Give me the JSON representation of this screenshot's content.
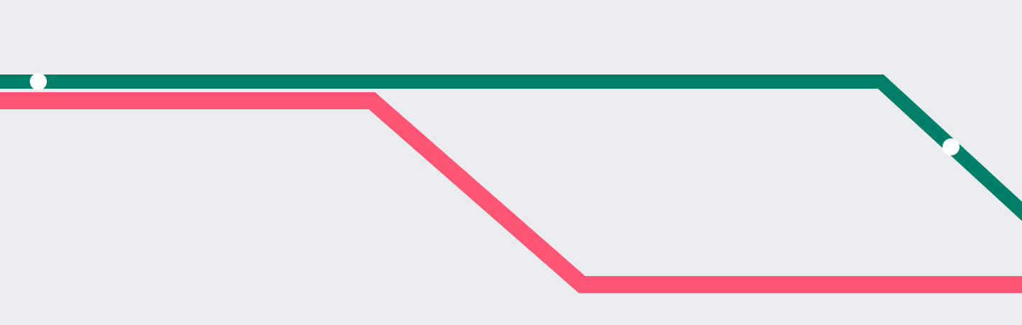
{
  "colors": {
    "background": "#EBECF0",
    "line_green": "#007F68",
    "line_pink": "#FF5574",
    "stop_marker": "#FFFFFF"
  },
  "diagram": {
    "lines": [
      {
        "color_key": "line_green",
        "icon": "transit-line-green",
        "stops": 2
      },
      {
        "color_key": "line_pink",
        "icon": "transit-line-pink",
        "stops": 0
      }
    ]
  }
}
